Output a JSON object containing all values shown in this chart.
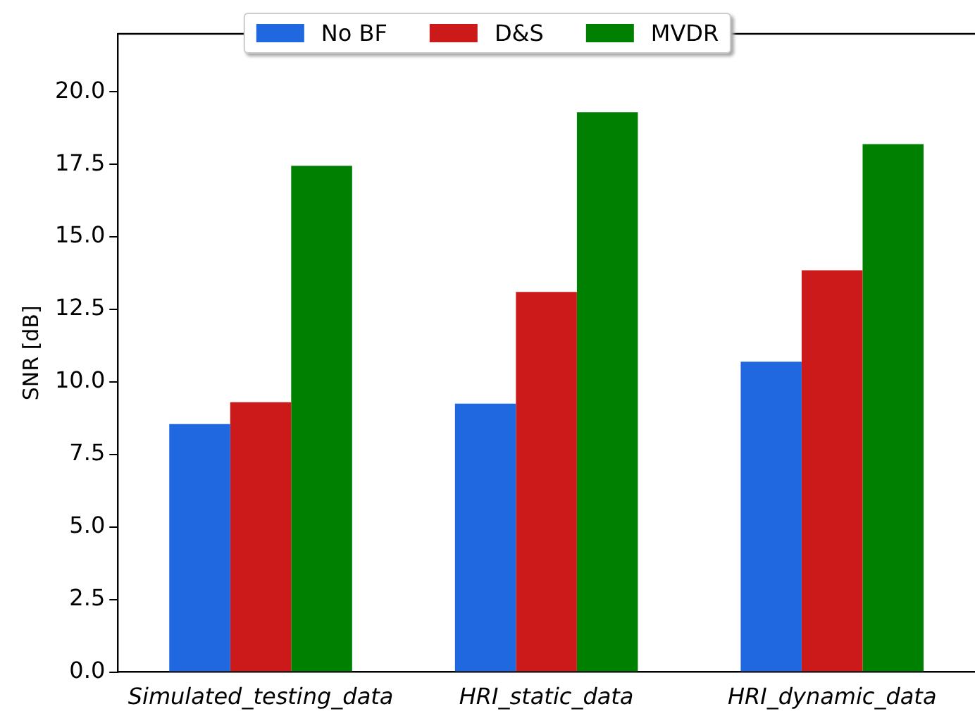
{
  "chart_data": {
    "type": "bar",
    "ylabel": "SNR [dB]",
    "categories": [
      "Simulated_testing_data",
      "HRI_static_data",
      "HRI_dynamic_data"
    ],
    "series": [
      {
        "name": "No BF",
        "color": "#1f68e0",
        "values": [
          8.55,
          9.25,
          10.7
        ]
      },
      {
        "name": "D&S",
        "color": "#cc1a1a",
        "values": [
          9.3,
          13.1,
          13.85
        ]
      },
      {
        "name": "MVDR",
        "color": "#008000",
        "values": [
          17.45,
          19.3,
          18.2
        ]
      }
    ],
    "ylim": [
      0,
      22
    ],
    "yticks": [
      {
        "value": 0,
        "label": "0.0"
      },
      2.5,
      {
        "value": 5,
        "label": "5.0"
      },
      7.5,
      {
        "value": 10,
        "label": "10.0"
      },
      12.5,
      {
        "value": 15,
        "label": "15.0"
      },
      17.5,
      {
        "value": 20,
        "label": "20.0"
      }
    ],
    "grid": false,
    "legend": "top"
  }
}
